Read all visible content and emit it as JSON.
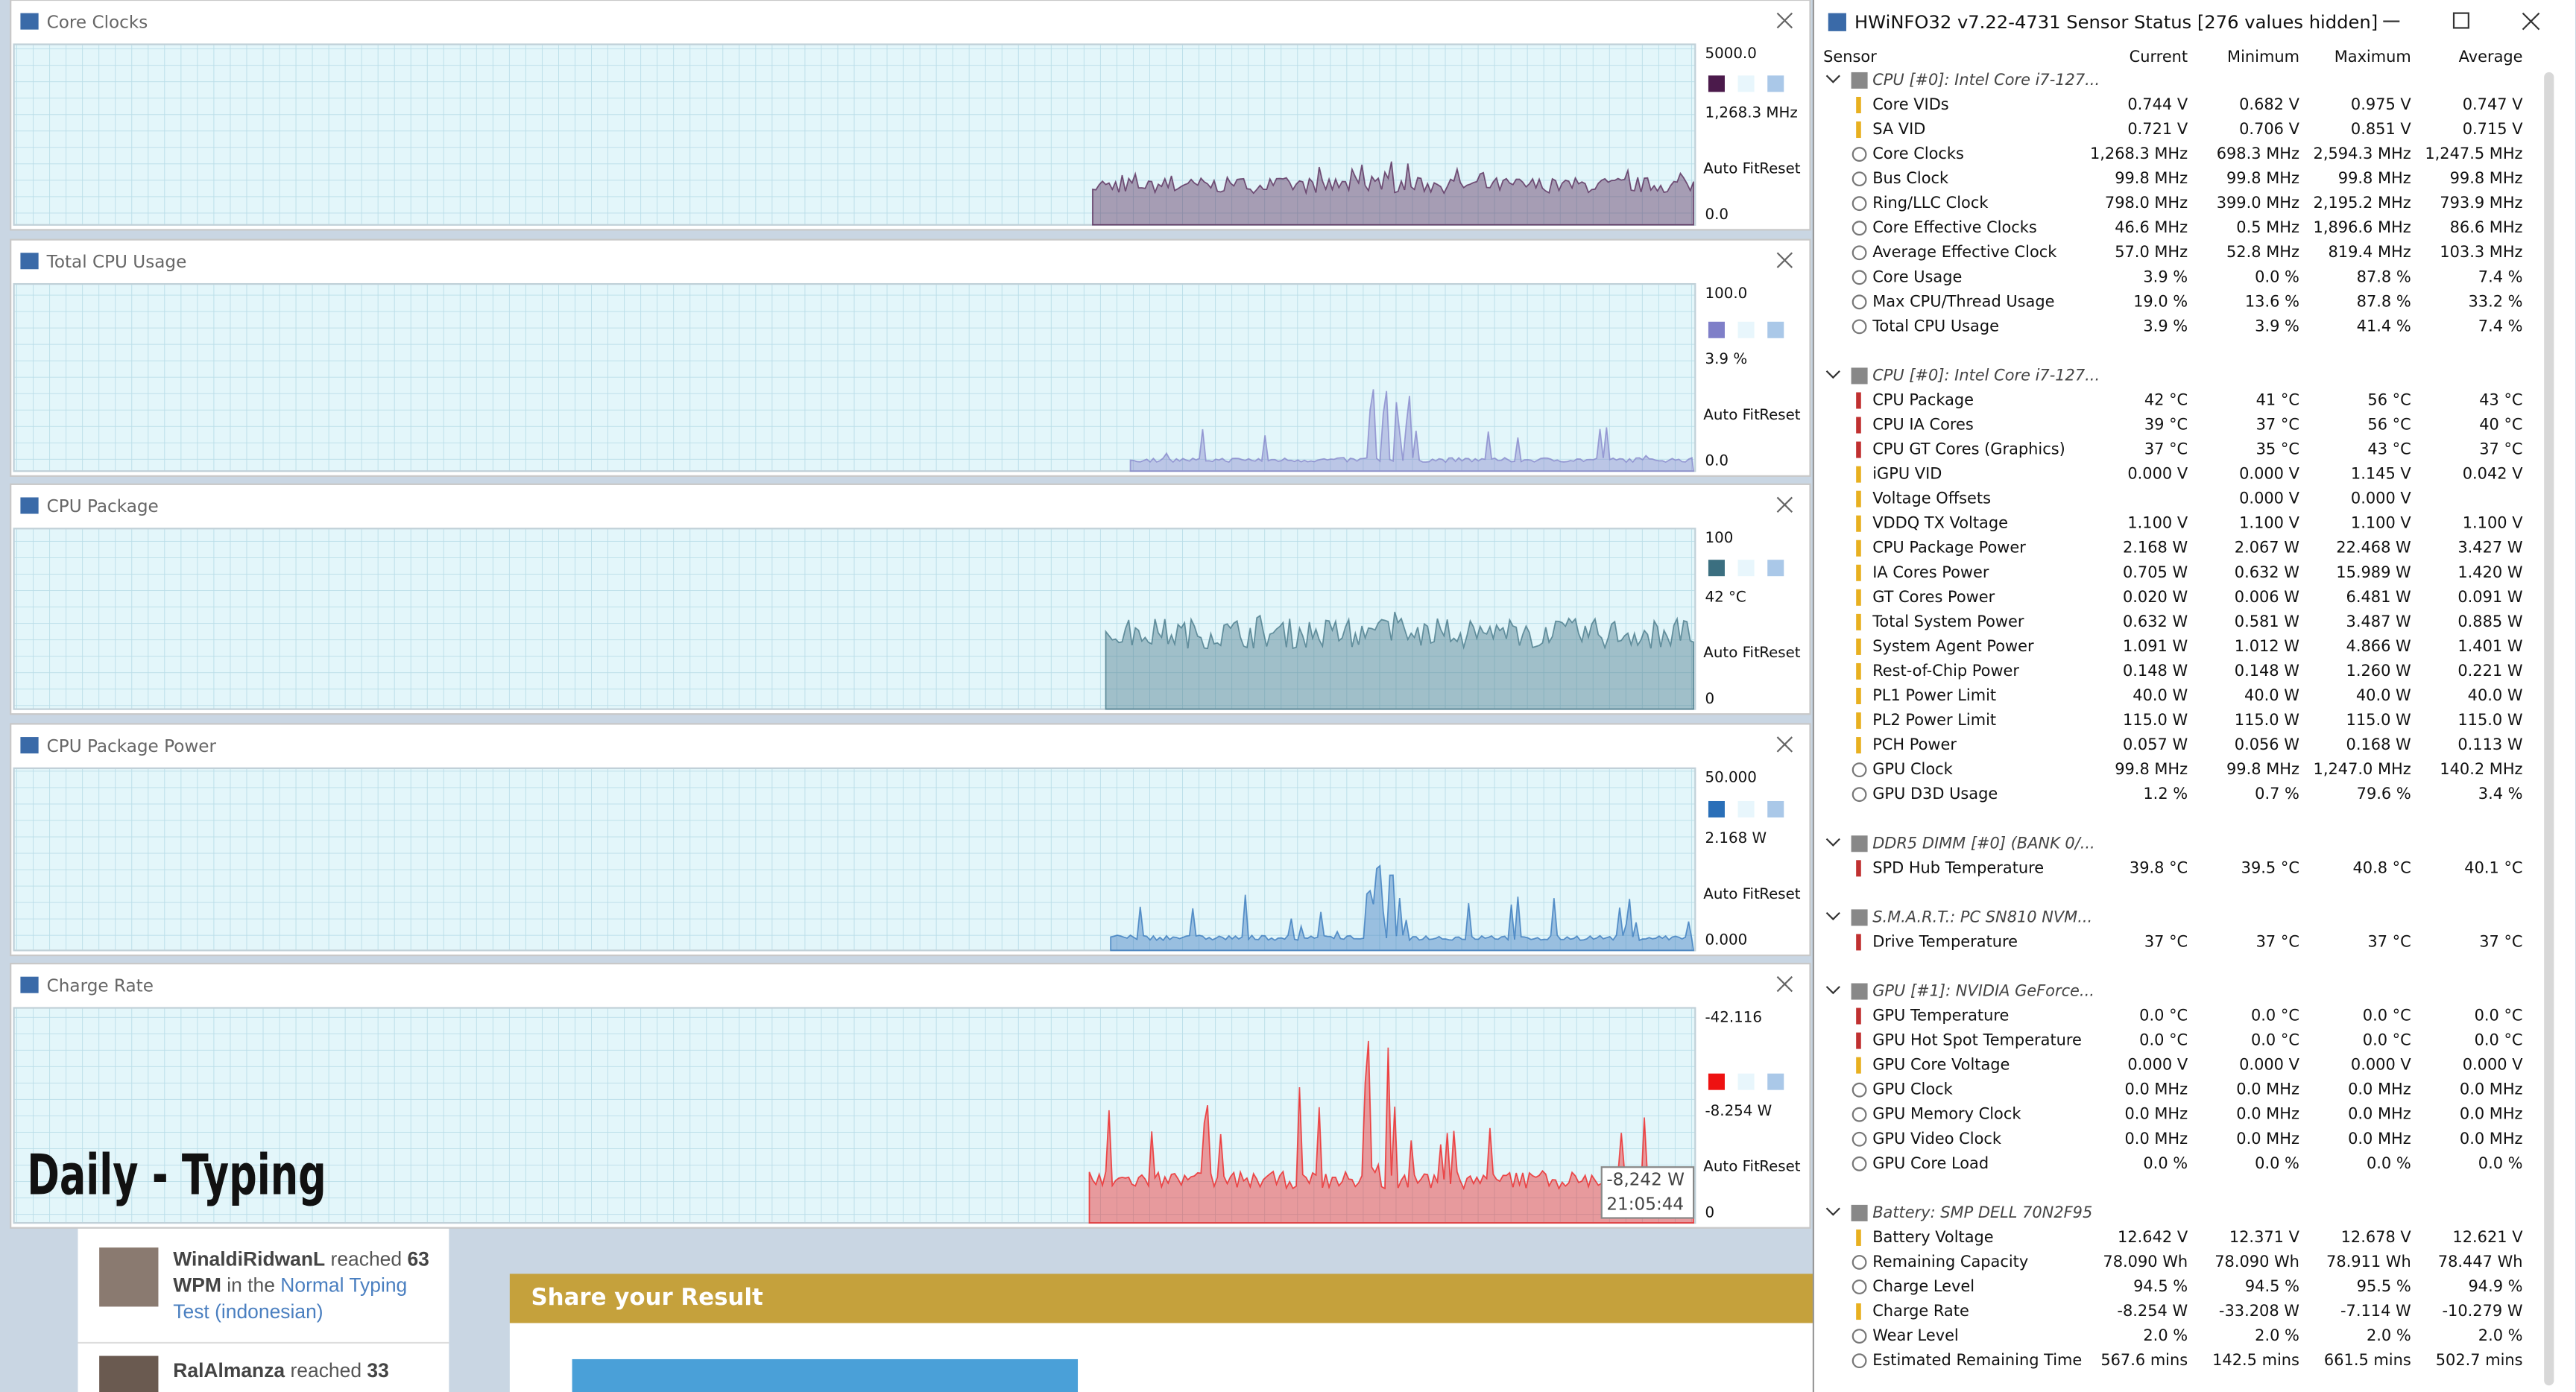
{
  "graphs": [
    {
      "title": "Core Clocks",
      "max": "5000.0",
      "current": "1,268.3 MHz",
      "min": "0.0",
      "color": "#4b1a4b"
    },
    {
      "title": "Total CPU Usage",
      "max": "100.0",
      "current": "3.9 %",
      "min": "0.0",
      "color": "#7f7fc8"
    },
    {
      "title": "CPU Package",
      "max": "100",
      "current": "42 °C",
      "min": "0",
      "color": "#3b6f80"
    },
    {
      "title": "CPU Package Power",
      "max": "50.000",
      "current": "2.168 W",
      "min": "0.000",
      "color": "#2a6fb8"
    },
    {
      "title": "Charge Rate",
      "max": "-42.116",
      "current": "-8.254 W",
      "min": "0",
      "color": "#ee1111"
    }
  ],
  "buttons": {
    "autofit": "Auto Fit",
    "reset": "Reset"
  },
  "tooltip": {
    "value": "-8,242 W",
    "time": "21:05:44"
  },
  "sensor_window": {
    "title": "HWiNFO32 v7.22-4731 Sensor Status [276 values hidden]",
    "columns": [
      "Sensor",
      "Current",
      "Minimum",
      "Maximum",
      "Average"
    ],
    "groups": [
      {
        "name": "CPU [#0]: Intel Core i7-127...",
        "rows": [
          {
            "label": "Core VIDs",
            "values": [
              "0.744 V",
              "0.682 V",
              "0.975 V",
              "0.747 V"
            ]
          },
          {
            "label": "SA VID",
            "values": [
              "0.721 V",
              "0.706 V",
              "0.851 V",
              "0.715 V"
            ]
          },
          {
            "label": "Core Clocks",
            "values": [
              "1,268.3 MHz",
              "698.3 MHz",
              "2,594.3 MHz",
              "1,247.5 MHz"
            ]
          },
          {
            "label": "Bus Clock",
            "values": [
              "99.8 MHz",
              "99.8 MHz",
              "99.8 MHz",
              "99.8 MHz"
            ]
          },
          {
            "label": "Ring/LLC Clock",
            "values": [
              "798.0 MHz",
              "399.0 MHz",
              "2,195.2 MHz",
              "793.9 MHz"
            ]
          },
          {
            "label": "Core Effective Clocks",
            "values": [
              "46.6 MHz",
              "0.5 MHz",
              "1,896.6 MHz",
              "86.6 MHz"
            ]
          },
          {
            "label": "Average Effective Clock",
            "values": [
              "57.0 MHz",
              "52.8 MHz",
              "819.4 MHz",
              "103.3 MHz"
            ]
          },
          {
            "label": "Core Usage",
            "values": [
              "3.9 %",
              "0.0 %",
              "87.8 %",
              "7.4 %"
            ]
          },
          {
            "label": "Max CPU/Thread Usage",
            "values": [
              "19.0 %",
              "13.6 %",
              "87.8 %",
              "33.2 %"
            ]
          },
          {
            "label": "Total CPU Usage",
            "values": [
              "3.9 %",
              "3.9 %",
              "41.4 %",
              "7.4 %"
            ]
          }
        ]
      },
      {
        "name": "CPU [#0]: Intel Core i7-127...",
        "rows": [
          {
            "label": "CPU Package",
            "values": [
              "42 °C",
              "41 °C",
              "56 °C",
              "43 °C"
            ]
          },
          {
            "label": "CPU IA Cores",
            "values": [
              "39 °C",
              "37 °C",
              "56 °C",
              "40 °C"
            ]
          },
          {
            "label": "CPU GT Cores (Graphics)",
            "values": [
              "37 °C",
              "35 °C",
              "43 °C",
              "37 °C"
            ]
          },
          {
            "label": "iGPU VID",
            "values": [
              "0.000 V",
              "0.000 V",
              "1.145 V",
              "0.042 V"
            ]
          },
          {
            "label": "Voltage Offsets",
            "values": [
              null,
              "0.000 V",
              "0.000 V",
              null
            ]
          },
          {
            "label": "VDDQ TX Voltage",
            "values": [
              "1.100 V",
              "1.100 V",
              "1.100 V",
              "1.100 V"
            ]
          },
          {
            "label": "CPU Package Power",
            "values": [
              "2.168 W",
              "2.067 W",
              "22.468 W",
              "3.427 W"
            ]
          },
          {
            "label": "IA Cores Power",
            "values": [
              "0.705 W",
              "0.632 W",
              "15.989 W",
              "1.420 W"
            ]
          },
          {
            "label": "GT Cores Power",
            "values": [
              "0.020 W",
              "0.006 W",
              "6.481 W",
              "0.091 W"
            ]
          },
          {
            "label": "Total System Power",
            "values": [
              "0.632 W",
              "0.581 W",
              "3.487 W",
              "0.885 W"
            ]
          },
          {
            "label": "System Agent Power",
            "values": [
              "1.091 W",
              "1.012 W",
              "4.866 W",
              "1.401 W"
            ]
          },
          {
            "label": "Rest-of-Chip Power",
            "values": [
              "0.148 W",
              "0.148 W",
              "1.260 W",
              "0.221 W"
            ]
          },
          {
            "label": "PL1 Power Limit",
            "values": [
              "40.0 W",
              "40.0 W",
              "40.0 W",
              "40.0 W"
            ]
          },
          {
            "label": "PL2 Power Limit",
            "values": [
              "115.0 W",
              "115.0 W",
              "115.0 W",
              "115.0 W"
            ]
          },
          {
            "label": "PCH Power",
            "values": [
              "0.057 W",
              "0.056 W",
              "0.168 W",
              "0.113 W"
            ]
          },
          {
            "label": "GPU Clock",
            "values": [
              "99.8 MHz",
              "99.8 MHz",
              "1,247.0 MHz",
              "140.2 MHz"
            ]
          },
          {
            "label": "GPU D3D Usage",
            "values": [
              "1.2 %",
              "0.7 %",
              "79.6 %",
              "3.4 %"
            ]
          }
        ]
      },
      {
        "name": "DDR5 DIMM [#0] (BANK 0/...",
        "rows": [
          {
            "label": "SPD Hub Temperature",
            "values": [
              "39.8 °C",
              "39.5 °C",
              "40.8 °C",
              "40.1 °C"
            ]
          }
        ]
      },
      {
        "name": "S.M.A.R.T.: PC SN810 NVM...",
        "rows": [
          {
            "label": "Drive Temperature",
            "values": [
              "37 °C",
              "37 °C",
              "37 °C",
              "37 °C"
            ]
          }
        ]
      },
      {
        "name": "GPU [#1]: NVIDIA GeForce...",
        "rows": [
          {
            "label": "GPU Temperature",
            "values": [
              "0.0 °C",
              "0.0 °C",
              "0.0 °C",
              "0.0 °C"
            ]
          },
          {
            "label": "GPU Hot Spot Temperature",
            "values": [
              "0.0 °C",
              "0.0 °C",
              "0.0 °C",
              "0.0 °C"
            ]
          },
          {
            "label": "GPU Core Voltage",
            "values": [
              "0.000 V",
              "0.000 V",
              "0.000 V",
              "0.000 V"
            ]
          },
          {
            "label": "GPU Clock",
            "values": [
              "0.0 MHz",
              "0.0 MHz",
              "0.0 MHz",
              "0.0 MHz"
            ]
          },
          {
            "label": "GPU Memory Clock",
            "values": [
              "0.0 MHz",
              "0.0 MHz",
              "0.0 MHz",
              "0.0 MHz"
            ]
          },
          {
            "label": "GPU Video Clock",
            "values": [
              "0.0 MHz",
              "0.0 MHz",
              "0.0 MHz",
              "0.0 MHz"
            ]
          },
          {
            "label": "GPU Core Load",
            "values": [
              "0.0 %",
              "0.0 %",
              "0.0 %",
              "0.0 %"
            ]
          }
        ]
      },
      {
        "name": "Battery: SMP DELL 70N2F95",
        "rows": [
          {
            "label": "Battery Voltage",
            "values": [
              "12.642 V",
              "12.371 V",
              "12.678 V",
              "12.621 V"
            ]
          },
          {
            "label": "Remaining Capacity",
            "values": [
              "78.090 Wh",
              "78.090 Wh",
              "78.911 Wh",
              "78.447 Wh"
            ]
          },
          {
            "label": "Charge Level",
            "values": [
              "94.5 %",
              "94.5 %",
              "95.5 %",
              "94.9 %"
            ]
          },
          {
            "label": "Charge Rate",
            "values": [
              "-8.254 W",
              "-33.208 W",
              "-7.114 W",
              "-10.279 W"
            ]
          },
          {
            "label": "Wear Level",
            "values": [
              "2.0 %",
              "2.0 %",
              "2.0 %",
              "2.0 %"
            ]
          },
          {
            "label": "Estimated Remaining Time",
            "values": [
              "567.6 mins",
              "142.5 mins",
              "661.5 mins",
              "502.7 mins"
            ]
          }
        ]
      }
    ]
  },
  "page": {
    "banner": "Daily - Typing",
    "feed": [
      {
        "user": "WinaldiRidwanL",
        "verb": "reached",
        "wpm": "63",
        "unit": "WPM",
        "mid": "in the",
        "test": "Normal Typing Test (indonesian)"
      },
      {
        "user": "RalAlmanza",
        "verb": "reached",
        "wpm": "33"
      }
    ],
    "share": "Share your Result"
  }
}
